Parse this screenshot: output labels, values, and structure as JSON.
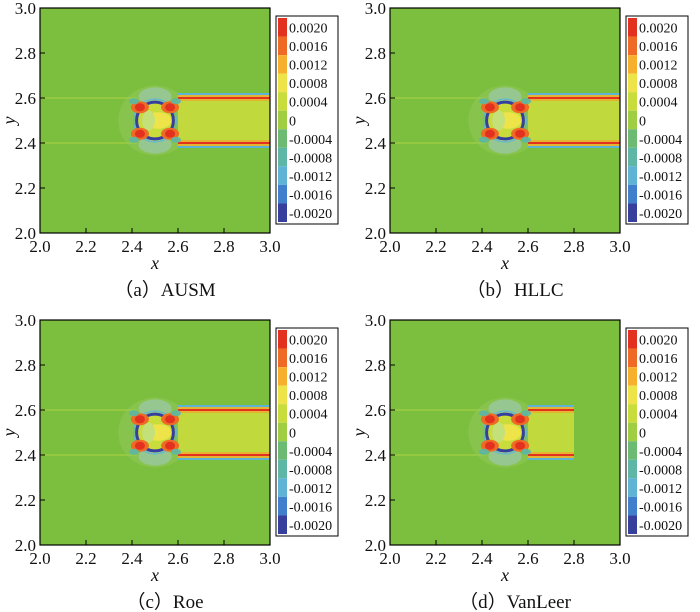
{
  "colors": {
    "background_field": "#7cbf3f",
    "positive": [
      "#9fce43",
      "#c8dc3c",
      "#eee44a",
      "#f7b02e",
      "#ef6a25",
      "#e2321f"
    ],
    "negative": [
      "#6dbb73",
      "#5db6a6",
      "#5fb4d6",
      "#3f7fcb",
      "#373f9d"
    ]
  },
  "chart_data": [
    {
      "type": "heatmap",
      "caption": "（a）AUSM",
      "xlabel": "x",
      "ylabel": "y",
      "xlim": [
        2.0,
        3.0
      ],
      "ylim": [
        2.0,
        3.0
      ],
      "xticks": [
        "2.0",
        "2.2",
        "2.4",
        "2.6",
        "2.8",
        "3.0"
      ],
      "yticks": [
        "2.0",
        "2.2",
        "2.4",
        "2.6",
        "2.8",
        "3.0"
      ],
      "colorbar": [
        "0.0020",
        "0.0016",
        "0.0012",
        "0.0008",
        "0.0004",
        "0",
        "-0.0004",
        "-0.0008",
        "-0.0012",
        "-0.0016",
        "-0.0020"
      ],
      "cylinder_center": [
        2.5,
        2.5
      ],
      "cylinder_radius": 0.08,
      "wake_lines_y": [
        2.6,
        2.4
      ],
      "wake_x_range": [
        2.6,
        3.0
      ]
    },
    {
      "type": "heatmap",
      "caption": "（b）HLLC",
      "xlabel": "x",
      "ylabel": "y",
      "xlim": [
        2.0,
        3.0
      ],
      "ylim": [
        2.0,
        3.0
      ],
      "xticks": [
        "2.0",
        "2.2",
        "2.4",
        "2.6",
        "2.8",
        "3.0"
      ],
      "yticks": [
        "2.0",
        "2.2",
        "2.4",
        "2.6",
        "2.8",
        "3.0"
      ],
      "colorbar": [
        "0.0020",
        "0.0016",
        "0.0012",
        "0.0008",
        "0.0004",
        "0",
        "-0.0004",
        "-0.0008",
        "-0.0012",
        "-0.0016",
        "-0.0020"
      ],
      "cylinder_center": [
        2.5,
        2.5
      ],
      "cylinder_radius": 0.08,
      "wake_lines_y": [
        2.6,
        2.4
      ],
      "wake_x_range": [
        2.6,
        3.0
      ]
    },
    {
      "type": "heatmap",
      "caption": "（c）Roe",
      "xlabel": "x",
      "ylabel": "y",
      "xlim": [
        2.0,
        3.0
      ],
      "ylim": [
        2.0,
        3.0
      ],
      "xticks": [
        "2.0",
        "2.2",
        "2.4",
        "2.6",
        "2.8",
        "3.0"
      ],
      "yticks": [
        "2.0",
        "2.2",
        "2.4",
        "2.6",
        "2.8",
        "3.0"
      ],
      "colorbar": [
        "0.0020",
        "0.0016",
        "0.0012",
        "0.0008",
        "0.0004",
        "0",
        "-0.0004",
        "-0.0008",
        "-0.0012",
        "-0.0016",
        "-0.0020"
      ],
      "cylinder_center": [
        2.5,
        2.5
      ],
      "cylinder_radius": 0.08,
      "wake_lines_y": [
        2.6,
        2.4
      ],
      "wake_x_range": [
        2.6,
        3.0
      ]
    },
    {
      "type": "heatmap",
      "caption": "（d）VanLeer",
      "xlabel": "x",
      "ylabel": "y",
      "xlim": [
        2.0,
        3.0
      ],
      "ylim": [
        2.0,
        3.0
      ],
      "xticks": [
        "2.0",
        "2.2",
        "2.4",
        "2.6",
        "2.8",
        "3.0"
      ],
      "yticks": [
        "2.0",
        "2.2",
        "2.4",
        "2.6",
        "2.8",
        "3.0"
      ],
      "colorbar": [
        "0.0020",
        "0.0016",
        "0.0012",
        "0.0008",
        "0.0004",
        "0",
        "-0.0004",
        "-0.0008",
        "-0.0012",
        "-0.0016",
        "-0.0020"
      ],
      "cylinder_center": [
        2.5,
        2.5
      ],
      "cylinder_radius": 0.08,
      "wake_lines_y": [
        2.6,
        2.4
      ],
      "wake_x_range": [
        2.6,
        2.8
      ]
    }
  ]
}
